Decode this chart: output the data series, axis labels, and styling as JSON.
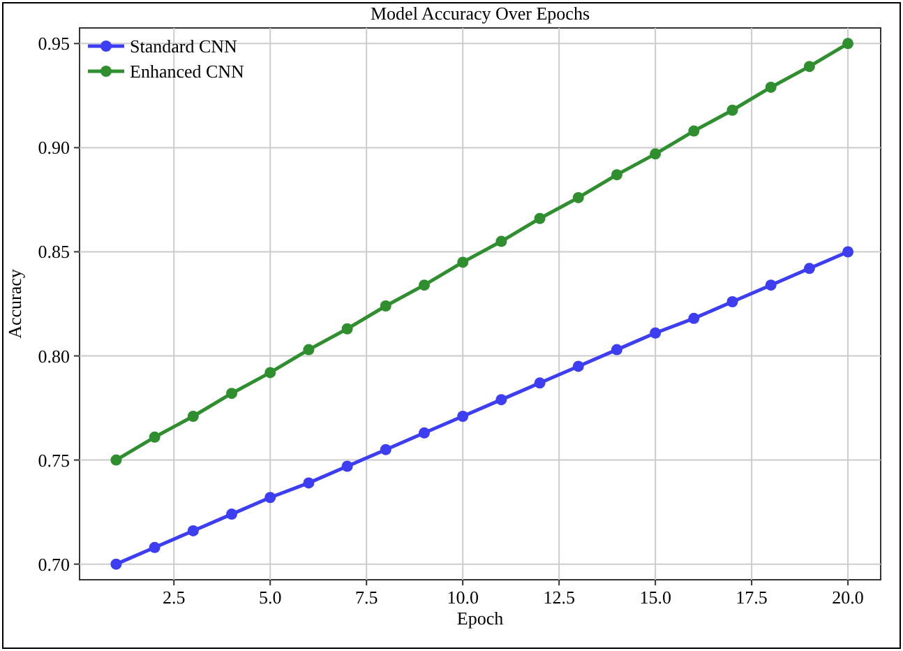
{
  "chart_data": {
    "type": "line",
    "title": "Model Accuracy Over Epochs",
    "xlabel": "Epoch",
    "ylabel": "Accuracy",
    "x": [
      1,
      2,
      3,
      4,
      5,
      6,
      7,
      8,
      9,
      10,
      11,
      12,
      13,
      14,
      15,
      16,
      17,
      18,
      19,
      20
    ],
    "series": [
      {
        "name": "Standard CNN",
        "color": "#3d3df2",
        "values": [
          0.7,
          0.708,
          0.716,
          0.724,
          0.732,
          0.739,
          0.747,
          0.755,
          0.763,
          0.771,
          0.779,
          0.787,
          0.795,
          0.803,
          0.811,
          0.818,
          0.826,
          0.834,
          0.842,
          0.85
        ]
      },
      {
        "name": "Enhanced CNN",
        "color": "#2f8f2f",
        "values": [
          0.75,
          0.761,
          0.771,
          0.782,
          0.792,
          0.803,
          0.813,
          0.824,
          0.834,
          0.845,
          0.855,
          0.866,
          0.876,
          0.887,
          0.897,
          0.908,
          0.918,
          0.929,
          0.939,
          0.95
        ]
      }
    ],
    "xlim": [
      0.05,
      20.85
    ],
    "ylim": [
      0.6925,
      0.9575
    ],
    "xticks": [
      {
        "value": 2.5,
        "label": "2.5"
      },
      {
        "value": 5,
        "label": "5.0"
      },
      {
        "value": 7.5,
        "label": "7.5"
      },
      {
        "value": 10,
        "label": "10.0"
      },
      {
        "value": 12.5,
        "label": "12.5"
      },
      {
        "value": 15,
        "label": "15.0"
      },
      {
        "value": 17.5,
        "label": "17.5"
      },
      {
        "value": 20,
        "label": "20.0"
      }
    ],
    "yticks": [
      {
        "value": 0.7,
        "label": "0.70"
      },
      {
        "value": 0.75,
        "label": "0.75"
      },
      {
        "value": 0.8,
        "label": "0.80"
      },
      {
        "value": 0.85,
        "label": "0.85"
      },
      {
        "value": 0.9,
        "label": "0.90"
      },
      {
        "value": 0.95,
        "label": "0.95"
      }
    ],
    "grid": true,
    "legend": "top left",
    "marker": "circle",
    "line_style": "solid"
  }
}
